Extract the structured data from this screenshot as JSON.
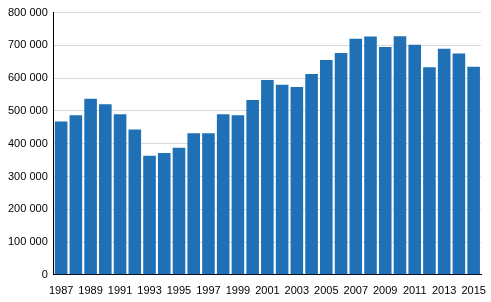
{
  "chart_data": {
    "type": "bar",
    "categories": [
      "1987",
      null,
      "1989",
      null,
      "1991",
      null,
      "1993",
      null,
      "1995",
      null,
      "1997",
      null,
      "1999",
      null,
      "2001",
      null,
      "2003",
      null,
      "2005",
      null,
      "2007",
      null,
      "2009",
      null,
      "2011",
      null,
      "2013",
      null,
      "2015"
    ],
    "values": [
      468000,
      487000,
      537000,
      520000,
      490000,
      443000,
      363000,
      372000,
      388000,
      432000,
      432000,
      490000,
      487000,
      533000,
      594000,
      580000,
      573000,
      613000,
      655000,
      677000,
      720000,
      727000,
      695000,
      728000,
      702000,
      633000,
      690000,
      675000,
      635000
    ],
    "color": "#1f70b4",
    "ylim": [
      0,
      800000
    ],
    "yticks": [
      0,
      {
        "value": 100000,
        "label": "100 000"
      },
      {
        "value": 200000,
        "label": "200 000"
      },
      {
        "value": 300000,
        "label": "300 000"
      },
      {
        "value": 400000,
        "label": "400 000"
      },
      {
        "value": 500000,
        "label": "500 000"
      },
      {
        "value": 600000,
        "label": "600 000"
      },
      {
        "value": 700000,
        "label": "700 000"
      },
      {
        "value": 800000,
        "label": "800 000"
      }
    ],
    "grid": true
  }
}
